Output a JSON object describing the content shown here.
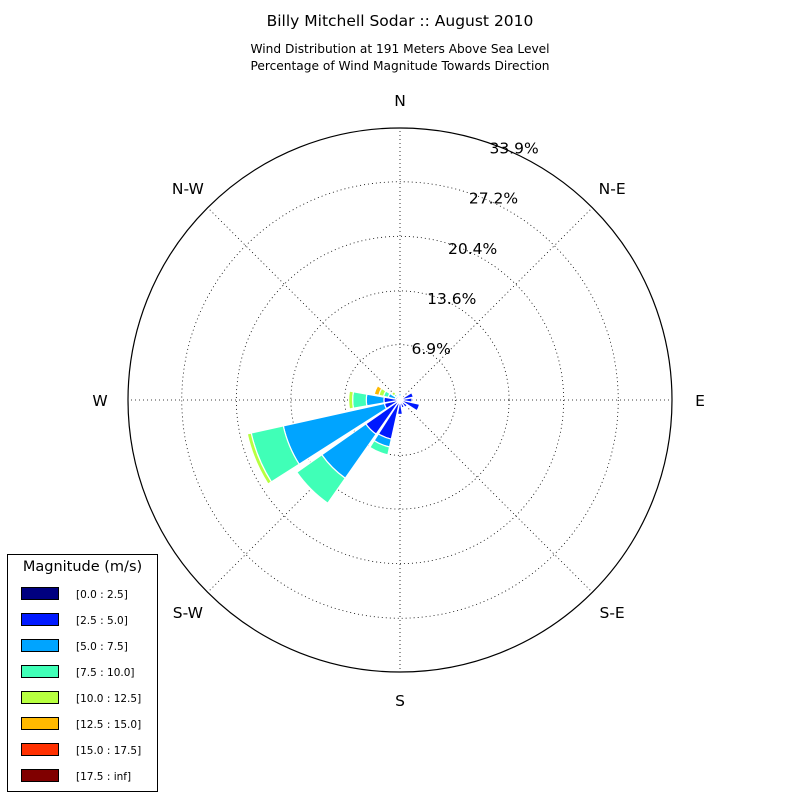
{
  "title": "Billy Mitchell Sodar :: August 2010",
  "subtitle_lines": [
    "Wind Distribution at 191 Meters Above Sea Level",
    "Percentage of Wind Magnitude Towards Direction"
  ],
  "chart_data": {
    "type": "windrose",
    "title": "Billy Mitchell Sodar :: August 2010",
    "subtitle": "Wind Distribution at 191 Meters Above Sea Level / Percentage of Wind Magnitude Towards Direction",
    "radial_max": 33.9,
    "radial_ticks": [
      6.9,
      13.6,
      20.4,
      27.2,
      33.9
    ],
    "radial_tick_labels": [
      "6.9%",
      "13.6%",
      "20.4%",
      "27.2%",
      "33.9%"
    ],
    "direction_labels": [
      {
        "deg": 0,
        "label": "N"
      },
      {
        "deg": 45,
        "label": "N-E"
      },
      {
        "deg": 90,
        "label": "E"
      },
      {
        "deg": 135,
        "label": "S-E"
      },
      {
        "deg": 180,
        "label": "S"
      },
      {
        "deg": 225,
        "label": "S-W"
      },
      {
        "deg": 270,
        "label": "W"
      },
      {
        "deg": 315,
        "label": "N-W"
      }
    ],
    "directions_deg": [
      0,
      22.5,
      45,
      67.5,
      90,
      112.5,
      135,
      157.5,
      180,
      202.5,
      225,
      247.5,
      270,
      292.5,
      315,
      337.5
    ],
    "bins": [
      {
        "name": "[0.0 : 2.5]",
        "color": "#000080",
        "values": [
          0.3,
          0.3,
          0.2,
          0.2,
          0.2,
          0.2,
          0.3,
          0.3,
          0.3,
          0.3,
          0.3,
          0.3,
          0.3,
          0.3,
          0.3,
          0.3
        ]
      },
      {
        "name": "[2.5 : 5.0]",
        "color": "#0019ff",
        "values": [
          0.0,
          0.2,
          0.3,
          1.5,
          1.3,
          2.3,
          0.8,
          0.7,
          1.5,
          4.7,
          4.9,
          1.7,
          1.7,
          0.3,
          0.3,
          0.0
        ]
      },
      {
        "name": "[5.0 : 7.5]",
        "color": "#00a4ff",
        "values": [
          0.5,
          0.0,
          0.0,
          0.0,
          0.0,
          0.0,
          0.0,
          0.0,
          0.0,
          1.0,
          6.7,
          12.9,
          2.2,
          0.9,
          0.0,
          0.0
        ]
      },
      {
        "name": "[7.5 : 10.0]",
        "color": "#40ffb7",
        "values": [
          0.0,
          0.0,
          0.0,
          0.0,
          0.0,
          0.0,
          0.0,
          0.0,
          0.0,
          1.0,
          3.8,
          4.1,
          1.7,
          0.6,
          0.3,
          0.0
        ]
      },
      {
        "name": "[10.0 : 12.5]",
        "color": "#b7ff40",
        "values": [
          0.0,
          0.0,
          0.0,
          0.0,
          0.0,
          0.0,
          0.0,
          0.0,
          0.0,
          0.0,
          0.0,
          0.5,
          0.5,
          0.6,
          0.4,
          0.0
        ]
      },
      {
        "name": "[12.5 : 15.0]",
        "color": "#ffb900",
        "values": [
          0.0,
          0.0,
          0.0,
          0.0,
          0.0,
          0.0,
          0.0,
          0.0,
          0.0,
          0.0,
          0.0,
          0.0,
          0.0,
          0.6,
          0.0,
          0.0
        ]
      },
      {
        "name": "[15.0 : 17.5]",
        "color": "#ff3000",
        "values": [
          0,
          0,
          0,
          0,
          0,
          0,
          0,
          0,
          0,
          0,
          0,
          0,
          0,
          0,
          0,
          0
        ]
      },
      {
        "name": "[17.5 : inf]",
        "color": "#800000",
        "values": [
          0,
          0,
          0,
          0,
          0,
          0,
          0,
          0,
          0,
          0,
          0,
          0,
          0,
          0,
          0,
          0
        ]
      }
    ],
    "legend_title": "Magnitude (m/s)",
    "legend_position": "bottom-left",
    "grid": true
  }
}
